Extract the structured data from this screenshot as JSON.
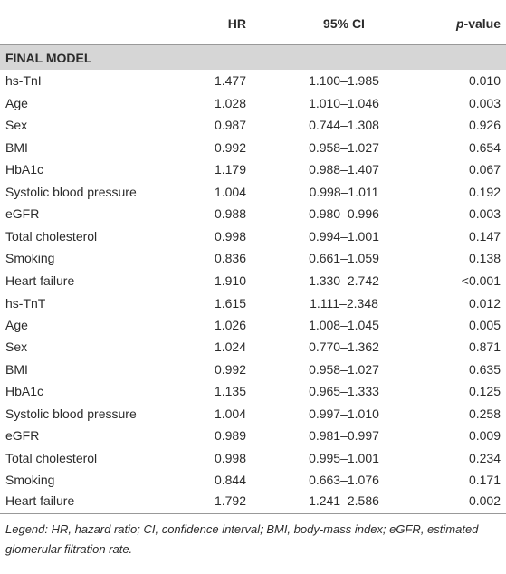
{
  "table": {
    "header": {
      "hr": "HR",
      "ci": "95% CI",
      "p_italic": "p",
      "p_rest": "-value"
    },
    "section": "FINAL MODEL",
    "groups": [
      [
        [
          "hs-TnI",
          "1.477",
          "1.100–1.985",
          "0.010"
        ],
        [
          "Age",
          "1.028",
          "1.010–1.046",
          "0.003"
        ],
        [
          "Sex",
          "0.987",
          "0.744–1.308",
          "0.926"
        ],
        [
          "BMI",
          "0.992",
          "0.958–1.027",
          "0.654"
        ],
        [
          "HbA1c",
          "1.179",
          "0.988–1.407",
          "0.067"
        ],
        [
          "Systolic blood pressure",
          "1.004",
          "0.998–1.011",
          "0.192"
        ],
        [
          "eGFR",
          "0.988",
          "0.980–0.996",
          "0.003"
        ],
        [
          "Total cholesterol",
          "0.998",
          "0.994–1.001",
          "0.147"
        ],
        [
          "Smoking",
          "0.836",
          "0.661–1.059",
          "0.138"
        ],
        [
          "Heart failure",
          "1.910",
          "1.330–2.742",
          "<0.001"
        ]
      ],
      [
        [
          "hs-TnT",
          "1.615",
          "1.111–2.348",
          "0.012"
        ],
        [
          "Age",
          "1.026",
          "1.008–1.045",
          "0.005"
        ],
        [
          "Sex",
          "1.024",
          "0.770–1.362",
          "0.871"
        ],
        [
          "BMI",
          "0.992",
          "0.958–1.027",
          "0.635"
        ],
        [
          "HbA1c",
          "1.135",
          "0.965–1.333",
          "0.125"
        ],
        [
          "Systolic blood pressure",
          "1.004",
          "0.997–1.010",
          "0.258"
        ],
        [
          "eGFR",
          "0.989",
          "0.981–0.997",
          "0.009"
        ],
        [
          "Total cholesterol",
          "0.998",
          "0.995–1.001",
          "0.234"
        ],
        [
          "Smoking",
          "0.844",
          "0.663–1.076",
          "0.171"
        ],
        [
          "Heart failure",
          "1.792",
          "1.241–2.586",
          "0.002"
        ]
      ]
    ],
    "legend": "Legend: HR, hazard ratio; CI, confidence interval; BMI, body-mass index; eGFR, estimated glomerular filtration rate."
  }
}
